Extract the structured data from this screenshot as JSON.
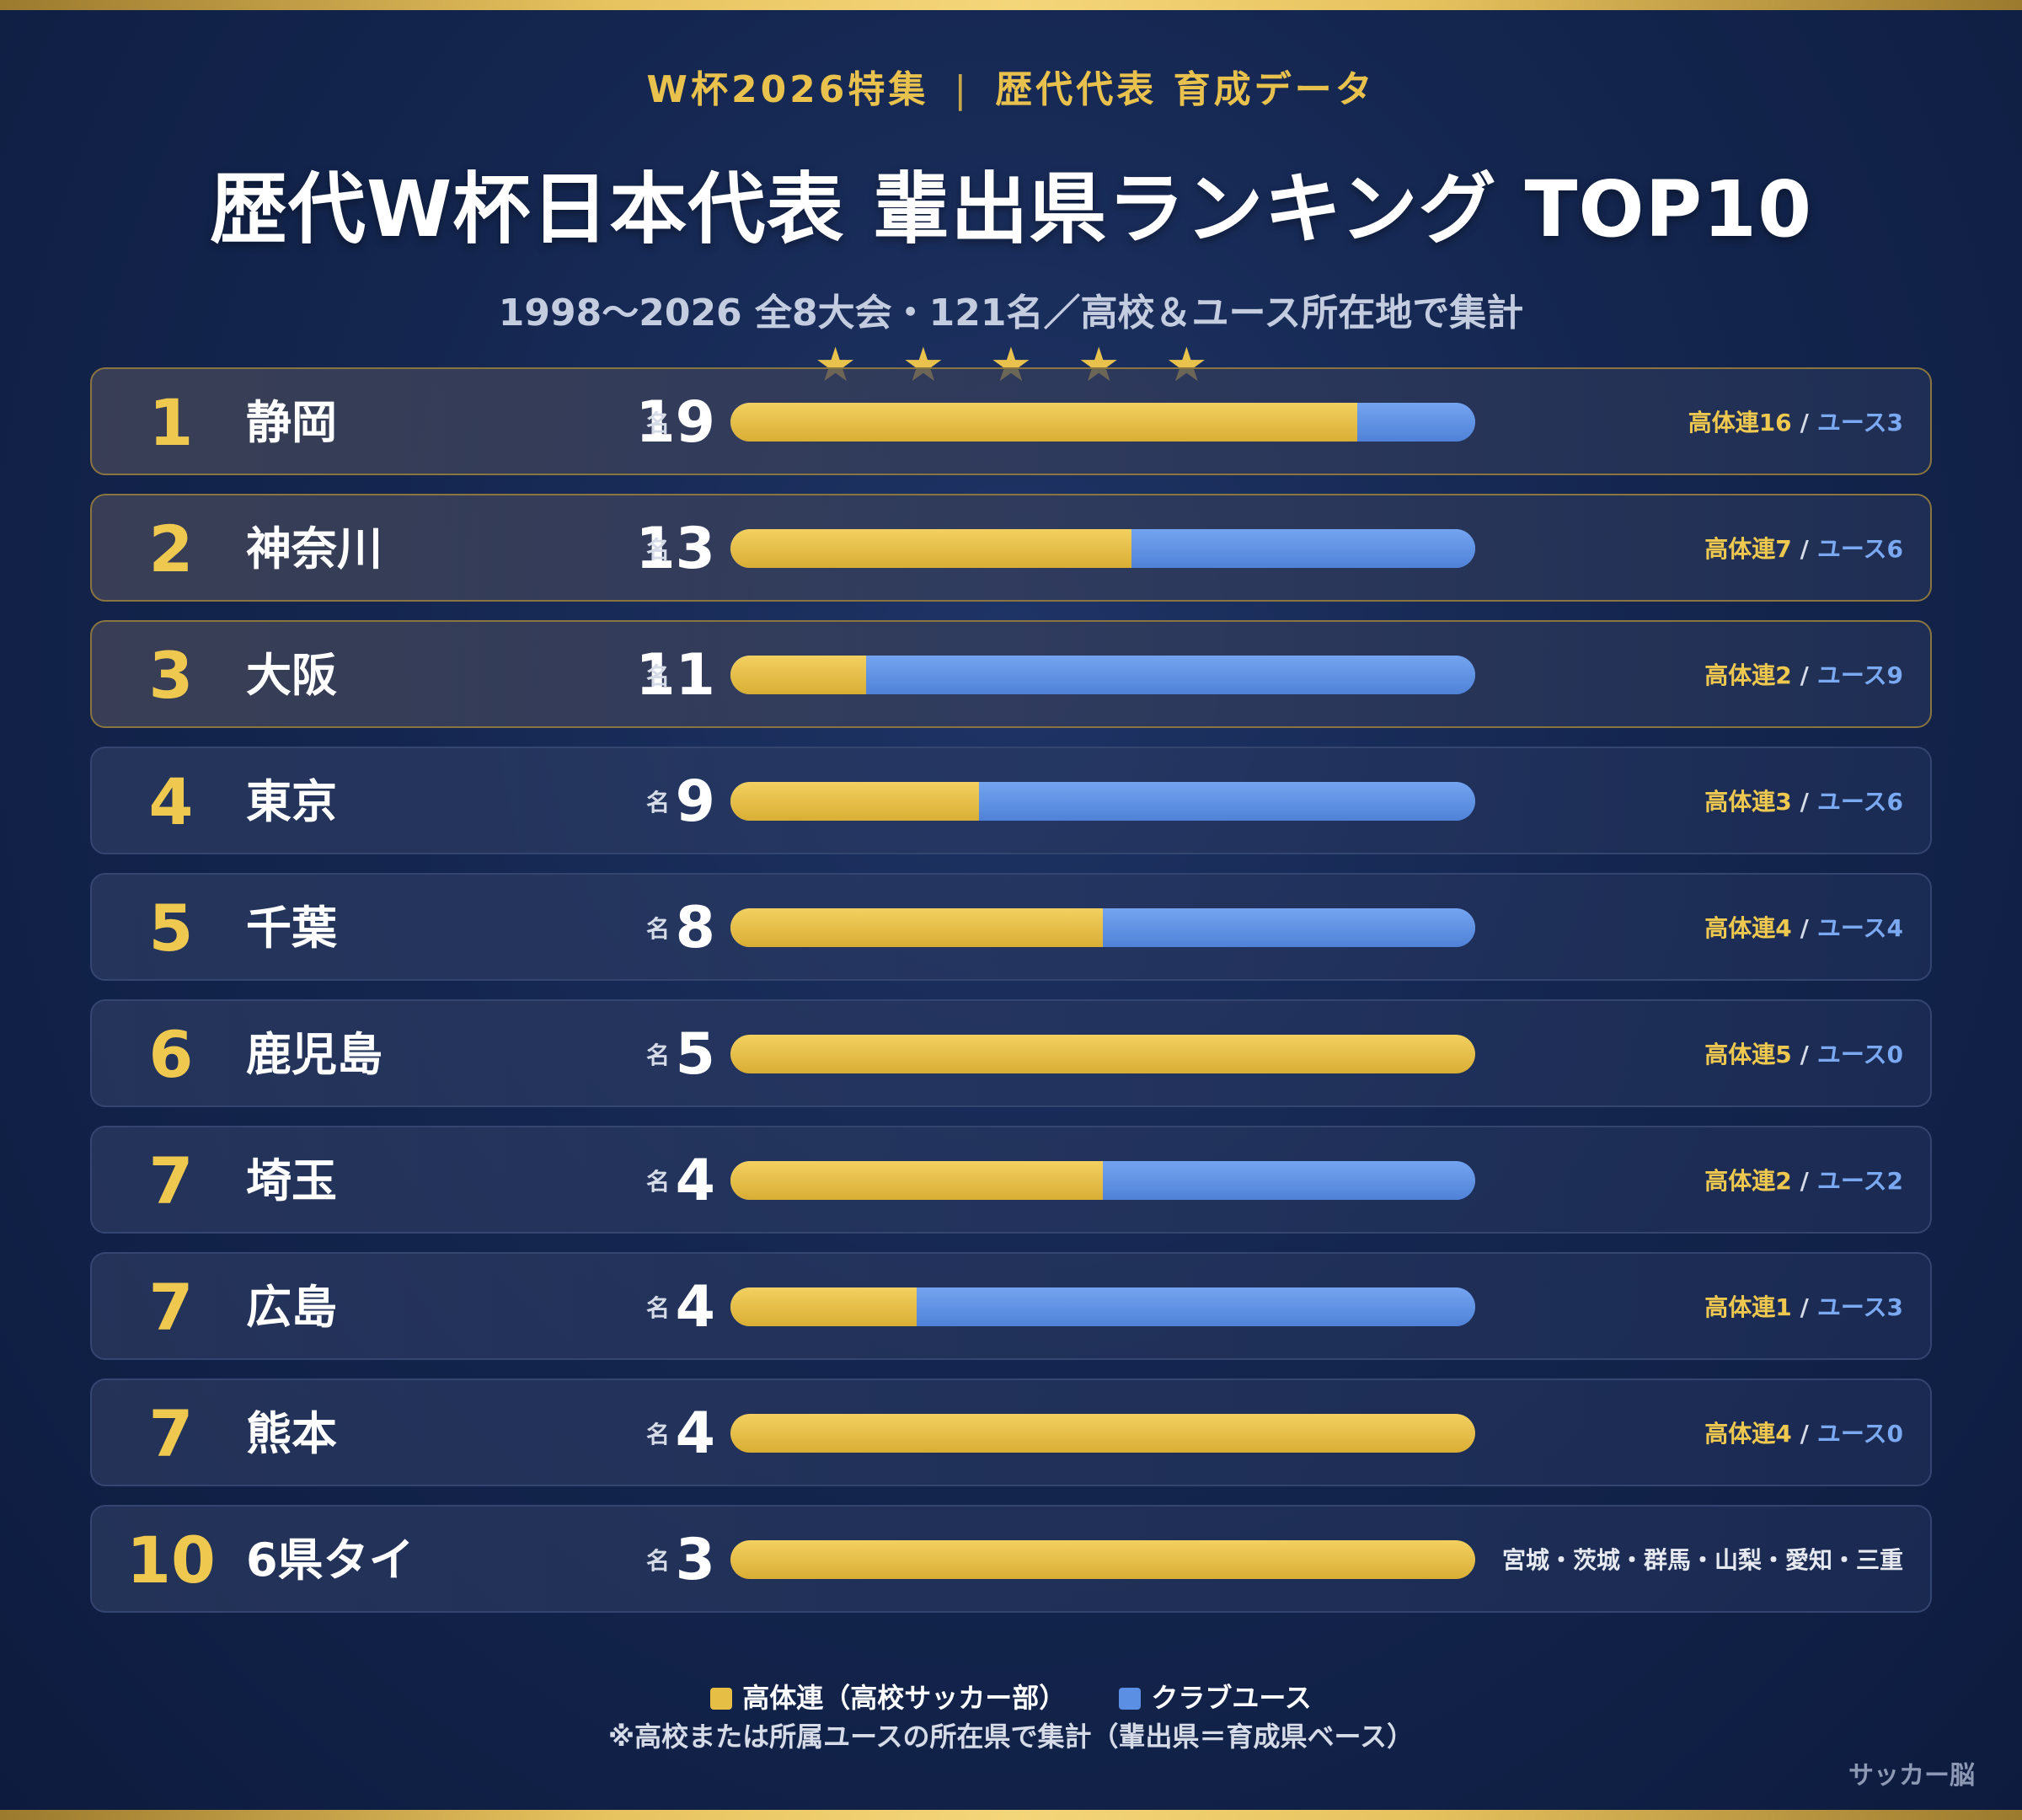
{
  "header": {
    "kicker_left": "W杯2026特集",
    "kicker_sep": "|",
    "kicker_right": "歴代代表 育成データ",
    "title": "歴代W杯日本代表 輩出県ランキング TOP10",
    "subtitle": "1998〜2026 全8大会・121名／高校＆ユース所在地で集計",
    "stars": "★★★★★"
  },
  "colors": {
    "gold": "#e9c24d",
    "highschool": "#e6bd45",
    "youth": "#5b8fe4",
    "background": "#14264f"
  },
  "chart_data": {
    "type": "bar",
    "orientation": "horizontal",
    "stacked": true,
    "unit": "名",
    "series_names": [
      "高体連（高校サッカー部）",
      "クラブユース"
    ],
    "rows": [
      {
        "rank": "1",
        "prefecture": "静岡",
        "total": "19",
        "highschool": 16,
        "youth": 3,
        "hs_label": "高体連16",
        "yt_label": "ユース3"
      },
      {
        "rank": "2",
        "prefecture": "神奈川",
        "total": "13",
        "highschool": 7,
        "youth": 6,
        "hs_label": "高体連7",
        "yt_label": "ユース6"
      },
      {
        "rank": "3",
        "prefecture": "大阪",
        "total": "11",
        "highschool": 2,
        "youth": 9,
        "hs_label": "高体連2",
        "yt_label": "ユース9"
      },
      {
        "rank": "4",
        "prefecture": "東京",
        "total": "9",
        "highschool": 3,
        "youth": 6,
        "hs_label": "高体連3",
        "yt_label": "ユース6"
      },
      {
        "rank": "5",
        "prefecture": "千葉",
        "total": "8",
        "highschool": 4,
        "youth": 4,
        "hs_label": "高体連4",
        "yt_label": "ユース4"
      },
      {
        "rank": "6",
        "prefecture": "鹿児島",
        "total": "5",
        "highschool": 5,
        "youth": 0,
        "hs_label": "高体連5",
        "yt_label": "ユース0"
      },
      {
        "rank": "7",
        "prefecture": "埼玉",
        "total": "4",
        "highschool": 2,
        "youth": 2,
        "hs_label": "高体連2",
        "yt_label": "ユース2"
      },
      {
        "rank": "7",
        "prefecture": "広島",
        "total": "4",
        "highschool": 1,
        "youth": 3,
        "hs_label": "高体連1",
        "yt_label": "ユース3"
      },
      {
        "rank": "7",
        "prefecture": "熊本",
        "total": "4",
        "highschool": 4,
        "youth": 0,
        "hs_label": "高体連4",
        "yt_label": "ユース0"
      },
      {
        "rank": "10",
        "prefecture": "6県タイ",
        "total": "3",
        "highschool": 3,
        "youth": 0,
        "detail": "宮城・茨城・群馬・山梨・愛知・三重"
      }
    ]
  },
  "legend": {
    "highschool": "高体連（高校サッカー部）",
    "youth": "クラブユース"
  },
  "note": "※高校または所属ユースの所在県で集計（輩出県＝育成県ベース）",
  "credit": "サッカー脳"
}
